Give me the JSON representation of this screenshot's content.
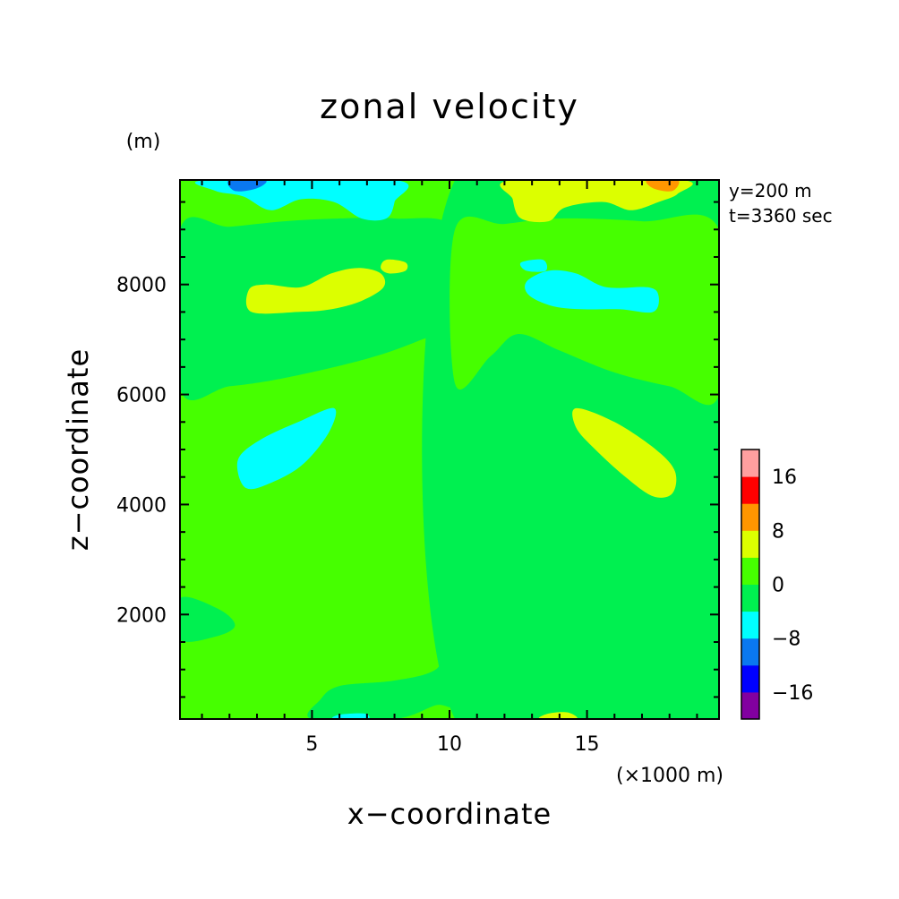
{
  "chart_data": {
    "type": "heatmap",
    "title": "zonal velocity",
    "xlabel": "x−coordinate",
    "ylabel": "z−coordinate",
    "x_unit": "(×1000 m)",
    "y_unit": "(m)",
    "annotations": [
      "y=200 m",
      "t=3360 sec"
    ],
    "x_range": [
      0.2,
      19.8
    ],
    "y_range": [
      100,
      9900
    ],
    "x_ticks": [
      5,
      10,
      15
    ],
    "y_ticks": [
      2000,
      4000,
      6000,
      8000
    ],
    "x_tick_labels": [
      "5",
      "10",
      "15"
    ],
    "y_tick_labels": [
      "2000",
      "4000",
      "6000",
      "8000"
    ],
    "colorbar": {
      "levels": [
        -20,
        -16,
        -12,
        -8,
        -4,
        0,
        4,
        8,
        12,
        16,
        20
      ],
      "colors": [
        "#8200a0",
        "#0000ff",
        "#0a78f0",
        "#00ffff",
        "#00f050",
        "#46ff00",
        "#dcff00",
        "#ff9600",
        "#ff0000",
        "#ff9f9f"
      ],
      "tick_values": [
        -16,
        -8,
        0,
        8,
        16
      ],
      "tick_labels": [
        "−16",
        "−8",
        "0",
        "8",
        "16"
      ]
    },
    "background_level": "0 to 4",
    "regions": [
      {
        "name": "upper-left-green",
        "level": "-4 to 0",
        "points": [
          [
            0.2,
            6100
          ],
          [
            2,
            6150
          ],
          [
            4,
            6300
          ],
          [
            7,
            6650
          ],
          [
            9,
            7000
          ],
          [
            10.2,
            7300
          ],
          [
            10.2,
            9000
          ],
          [
            8,
            9200
          ],
          [
            6,
            9200
          ],
          [
            4,
            9150
          ],
          [
            2,
            9050
          ],
          [
            0.2,
            9000
          ]
        ]
      },
      {
        "name": "right-green",
        "level": "-4 to 0",
        "points": [
          [
            10.2,
            100
          ],
          [
            19.8,
            100
          ],
          [
            19.8,
            9900
          ],
          [
            10.2,
            9900
          ]
        ]
      },
      {
        "name": "upper-right-mid-green",
        "level": "0 to 4",
        "points": [
          [
            10.2,
            6200
          ],
          [
            11.5,
            6700
          ],
          [
            12.5,
            7100
          ],
          [
            14,
            6800
          ],
          [
            16,
            6400
          ],
          [
            18,
            6150
          ],
          [
            19.8,
            6000
          ],
          [
            19.8,
            9000
          ],
          [
            17,
            9150
          ],
          [
            14,
            9200
          ],
          [
            12,
            9100
          ],
          [
            10.2,
            9000
          ]
        ]
      },
      {
        "name": "center-lower-green",
        "level": "-4 to 0",
        "points": [
          [
            10.2,
            5200
          ],
          [
            9.6,
            5300
          ],
          [
            9.2,
            5800
          ],
          [
            9.6,
            6100
          ],
          [
            10.2,
            6000
          ]
        ]
      },
      {
        "name": "left-lower-band",
        "level": "-4 to 0",
        "points": [
          [
            0.2,
            1550
          ],
          [
            1.5,
            1600
          ],
          [
            2.2,
            1800
          ],
          [
            1.6,
            2100
          ],
          [
            0.2,
            2300
          ]
        ]
      },
      {
        "name": "left-bottom-green",
        "level": "-4 to 0",
        "points": [
          [
            5,
            100
          ],
          [
            8,
            100
          ],
          [
            9.5,
            350
          ],
          [
            10.2,
            400
          ],
          [
            10.2,
            1500
          ],
          [
            9.5,
            1000
          ],
          [
            8,
            800
          ],
          [
            6,
            700
          ],
          [
            5.3,
            450
          ]
        ]
      },
      {
        "name": "left-mid-cyan",
        "level": "-8 to -4",
        "points": [
          [
            2.4,
            4900
          ],
          [
            3.2,
            5200
          ],
          [
            4.5,
            5500
          ],
          [
            5.8,
            5750
          ],
          [
            5.6,
            5300
          ],
          [
            4.6,
            4700
          ],
          [
            3.3,
            4350
          ],
          [
            2.6,
            4300
          ],
          [
            2.3,
            4600
          ]
        ]
      },
      {
        "name": "right-mid-yellow",
        "level": "4 to 8",
        "points": [
          [
            14.6,
            5750
          ],
          [
            16,
            5500
          ],
          [
            17.5,
            5000
          ],
          [
            18.2,
            4600
          ],
          [
            18.1,
            4200
          ],
          [
            17.4,
            4150
          ],
          [
            16.4,
            4500
          ],
          [
            15.3,
            5000
          ],
          [
            14.6,
            5400
          ]
        ]
      },
      {
        "name": "left-upper-yellow",
        "level": "4 to 8",
        "points": [
          [
            2.8,
            7500
          ],
          [
            2.7,
            7900
          ],
          [
            3.3,
            8000
          ],
          [
            4.6,
            7950
          ],
          [
            5.7,
            8200
          ],
          [
            6.7,
            8300
          ],
          [
            7.5,
            8200
          ],
          [
            7.6,
            7950
          ],
          [
            6.8,
            7700
          ],
          [
            5.7,
            7550
          ],
          [
            4.5,
            7500
          ]
        ]
      },
      {
        "name": "left-upper-yellow-small",
        "level": "4 to 8",
        "points": [
          [
            7.5,
            8300
          ],
          [
            7.7,
            8450
          ],
          [
            8.4,
            8400
          ],
          [
            8.4,
            8250
          ],
          [
            7.8,
            8200
          ]
        ]
      },
      {
        "name": "right-upper-cyan",
        "level": "-8 to -4",
        "points": [
          [
            12.8,
            8050
          ],
          [
            13.6,
            8250
          ],
          [
            14.6,
            8200
          ],
          [
            15.7,
            7950
          ],
          [
            17.2,
            7950
          ],
          [
            17.6,
            7800
          ],
          [
            17.4,
            7500
          ],
          [
            16.2,
            7550
          ],
          [
            14.9,
            7550
          ],
          [
            13.8,
            7600
          ],
          [
            12.9,
            7800
          ]
        ]
      },
      {
        "name": "right-upper-cyan-small",
        "level": "-8 to -4",
        "points": [
          [
            12.6,
            8400
          ],
          [
            12.8,
            8250
          ],
          [
            13.5,
            8250
          ],
          [
            13.4,
            8450
          ]
        ]
      },
      {
        "name": "left-top-cyan",
        "level": "-8 to -4",
        "points": [
          [
            1.2,
            9900
          ],
          [
            1.5,
            9700
          ],
          [
            2.5,
            9600
          ],
          [
            3.5,
            9350
          ],
          [
            4.6,
            9550
          ],
          [
            5.8,
            9500
          ],
          [
            6.8,
            9200
          ],
          [
            7.7,
            9200
          ],
          [
            8,
            9500
          ],
          [
            8,
            9900
          ]
        ]
      },
      {
        "name": "left-top-blue",
        "level": "-12 to -8",
        "points": [
          [
            2,
            9900
          ],
          [
            2.2,
            9700
          ],
          [
            3,
            9750
          ],
          [
            3.3,
            9900
          ]
        ]
      },
      {
        "name": "right-top-yellow",
        "level": "4 to 8",
        "points": [
          [
            12.3,
            9900
          ],
          [
            12.3,
            9550
          ],
          [
            12.6,
            9200
          ],
          [
            13.6,
            9150
          ],
          [
            14.2,
            9400
          ],
          [
            15.6,
            9500
          ],
          [
            16.6,
            9350
          ],
          [
            17.6,
            9500
          ],
          [
            18.3,
            9650
          ],
          [
            18.4,
            9900
          ]
        ]
      },
      {
        "name": "right-top-orange",
        "level": "8 to 12",
        "points": [
          [
            17.2,
            9900
          ],
          [
            17.4,
            9750
          ],
          [
            18.1,
            9700
          ],
          [
            18.3,
            9900
          ]
        ]
      },
      {
        "name": "bottom-left-cyan",
        "level": "-8 to -4",
        "points": [
          [
            5.8,
            100
          ],
          [
            6,
            180
          ],
          [
            6.9,
            200
          ],
          [
            7,
            100
          ]
        ]
      },
      {
        "name": "bottom-right-yellow",
        "level": "4 to 8",
        "points": [
          [
            13.3,
            100
          ],
          [
            13.6,
            200
          ],
          [
            14.3,
            220
          ],
          [
            14.6,
            100
          ]
        ]
      }
    ]
  }
}
